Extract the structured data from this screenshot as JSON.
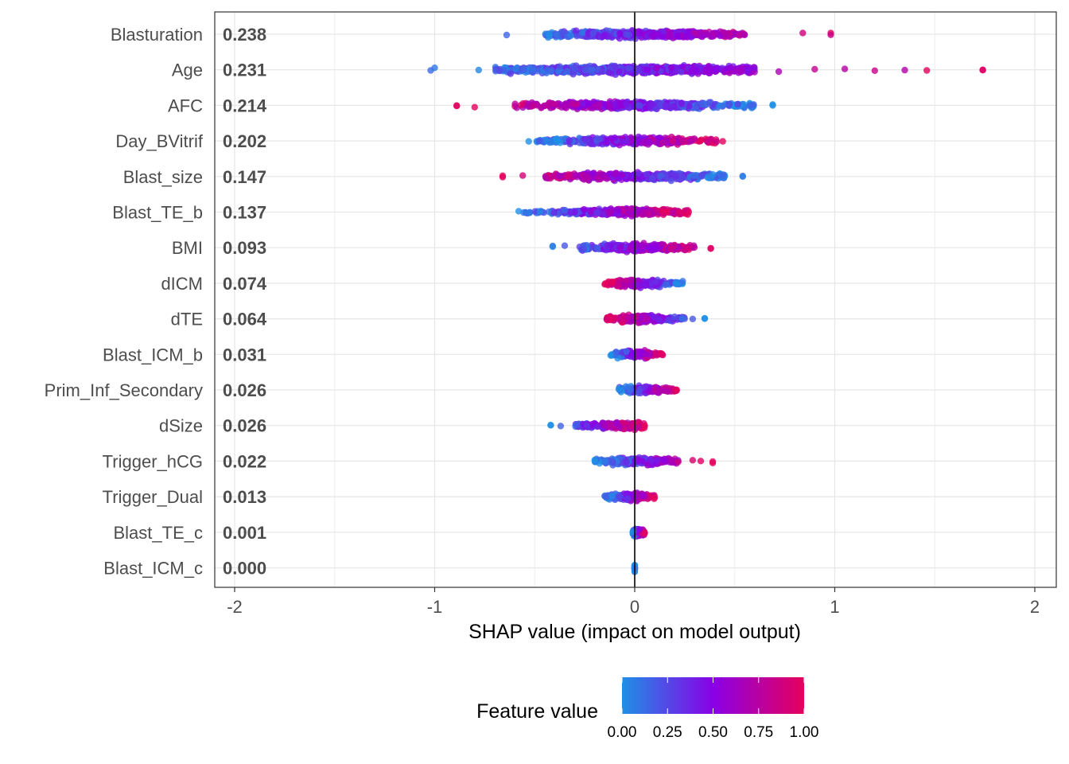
{
  "chart_data": {
    "type": "scatter",
    "subtype": "shap-beeswarm",
    "xlabel": "SHAP value (impact on model output)",
    "xlim": [
      -2.1,
      2.1
    ],
    "x_ticks": [
      -2,
      -1,
      0,
      1,
      2
    ],
    "x_tick_labels": [
      "-2",
      "-1",
      "0",
      "1",
      "2"
    ],
    "grid": true,
    "features": [
      {
        "name": "Blasturation",
        "mean_abs_shap": "0.238",
        "min": -0.64,
        "max": 0.98,
        "low_side": "left",
        "core": [
          -0.45,
          0.55
        ],
        "outliers": [
          0.84,
          0.98
        ]
      },
      {
        "name": "Age",
        "mean_abs_shap": "0.231",
        "min": -1.02,
        "max": 1.74,
        "low_side": "left",
        "core": [
          -0.7,
          0.6
        ],
        "outliers": [
          -1.0,
          -0.78,
          0.72,
          0.9,
          1.05,
          1.2,
          1.35,
          1.46,
          1.74
        ]
      },
      {
        "name": "AFC",
        "mean_abs_shap": "0.214",
        "min": -0.89,
        "max": 0.69,
        "low_side": "right",
        "core": [
          -0.6,
          0.6
        ],
        "outliers": [
          -0.89,
          -0.8,
          0.69
        ]
      },
      {
        "name": "Day_BVitrif",
        "mean_abs_shap": "0.202",
        "min": -0.53,
        "max": 0.44,
        "low_side": "left",
        "core": [
          -0.5,
          0.42
        ],
        "outliers": []
      },
      {
        "name": "Blast_size",
        "mean_abs_shap": "0.147",
        "min": -0.66,
        "max": 0.54,
        "low_side": "right",
        "core": [
          -0.45,
          0.45
        ],
        "outliers": [
          -0.66,
          -0.56,
          0.54
        ]
      },
      {
        "name": "Blast_TE_b",
        "mean_abs_shap": "0.137",
        "min": -0.58,
        "max": 0.27,
        "low_side": "left",
        "core": [
          -0.56,
          0.27
        ],
        "outliers": []
      },
      {
        "name": "BMI",
        "mean_abs_shap": "0.093",
        "min": -0.41,
        "max": 0.38,
        "low_side": "left",
        "core": [
          -0.28,
          0.3
        ],
        "outliers": [
          -0.41,
          -0.35,
          0.38
        ]
      },
      {
        "name": "dICM",
        "mean_abs_shap": "0.074",
        "min": -0.15,
        "max": 0.24,
        "low_side": "right",
        "core": [
          -0.15,
          0.24
        ],
        "outliers": []
      },
      {
        "name": "dTE",
        "mean_abs_shap": "0.064",
        "min": -0.14,
        "max": 0.35,
        "low_side": "right",
        "core": [
          -0.14,
          0.25
        ],
        "outliers": [
          0.29,
          0.35
        ]
      },
      {
        "name": "Blast_ICM_b",
        "mean_abs_shap": "0.031",
        "min": -0.12,
        "max": 0.14,
        "low_side": "left",
        "core": [
          -0.12,
          0.14
        ],
        "outliers": []
      },
      {
        "name": "Prim_Inf_Secondary",
        "mean_abs_shap": "0.026",
        "min": -0.08,
        "max": 0.21,
        "low_side": "left",
        "core": [
          -0.08,
          0.21
        ],
        "outliers": []
      },
      {
        "name": "dSize",
        "mean_abs_shap": "0.026",
        "min": -0.42,
        "max": 0.05,
        "low_side": "left",
        "core": [
          -0.3,
          0.05
        ],
        "outliers": [
          -0.42,
          -0.37
        ]
      },
      {
        "name": "Trigger_hCG",
        "mean_abs_shap": "0.022",
        "min": -0.2,
        "max": 0.39,
        "low_side": "left",
        "core": [
          -0.2,
          0.22
        ],
        "outliers": [
          0.29,
          0.33,
          0.39
        ]
      },
      {
        "name": "Trigger_Dual",
        "mean_abs_shap": "0.013",
        "min": -0.15,
        "max": 0.1,
        "low_side": "left",
        "core": [
          -0.15,
          0.1
        ],
        "outliers": []
      },
      {
        "name": "Blast_TE_c",
        "mean_abs_shap": "0.001",
        "min": -0.01,
        "max": 0.05,
        "low_side": "left",
        "core": [
          -0.01,
          0.05
        ],
        "outliers": []
      },
      {
        "name": "Blast_ICM_c",
        "mean_abs_shap": "0.000",
        "min": 0.0,
        "max": 0.0,
        "low_side": "left",
        "core": [
          0.0,
          0.0
        ],
        "outliers": []
      }
    ],
    "legend": {
      "title": "Feature value",
      "placement": "bottom",
      "ticks": [
        "0.00",
        "0.25",
        "0.50",
        "0.75",
        "1.00"
      ],
      "colors": {
        "low": "#1E90E6",
        "mid": "#8A00E6",
        "high": "#E6005C"
      }
    }
  }
}
